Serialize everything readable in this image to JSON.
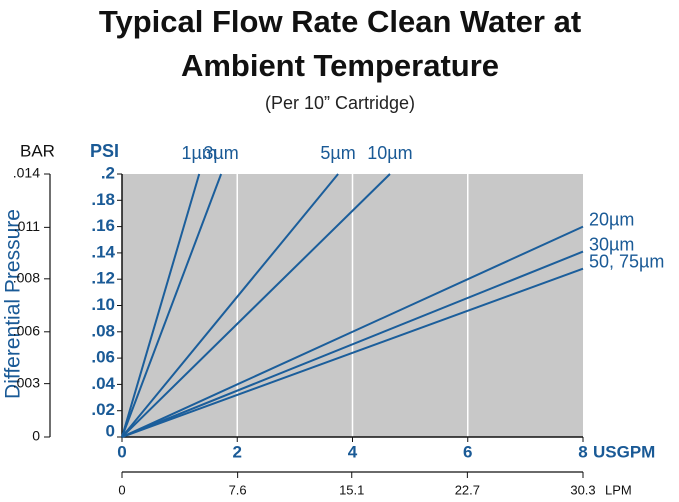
{
  "chart_data": {
    "type": "line",
    "title": [
      "Typical Flow Rate Clean Water at",
      "Ambient Temperature"
    ],
    "subtitle": "(Per 10” Cartridge)",
    "ylabel": "Differential Pressure",
    "ylabel_unit": "PSI",
    "y2label_unit": "BAR",
    "xlabel_unit": "USGPM",
    "x2label_unit": "LPM",
    "xlim": [
      0,
      8
    ],
    "xticks": [
      0,
      2,
      4,
      6,
      8
    ],
    "x2lim": [
      0,
      30.3
    ],
    "x2ticks": [
      0,
      7.6,
      15.1,
      22.7,
      30.3
    ],
    "ylim": [
      0,
      0.2
    ],
    "yticks": [
      0,
      {
        "value": 0.02,
        "label": ".02"
      },
      {
        "value": 0.04,
        "label": ".04"
      },
      {
        "value": 0.06,
        "label": ".06"
      },
      {
        "value": 0.08,
        "label": ".08"
      },
      {
        "value": 0.1,
        "label": ".10"
      },
      {
        "value": 0.12,
        "label": ".12"
      },
      {
        "value": 0.14,
        "label": ".14"
      },
      {
        "value": 0.16,
        "label": ".16"
      },
      {
        "value": 0.18,
        "label": ".18"
      },
      {
        "value": 0.2,
        "label": ".2"
      }
    ],
    "y2lim": [
      0,
      0.0138
    ],
    "y2ticks": [
      0,
      {
        "value": 0.0028,
        "label": ".003"
      },
      {
        "value": 0.00552,
        "label": ".006"
      },
      {
        "value": 0.0083,
        "label": ".008"
      },
      {
        "value": 0.011,
        "label": ".011"
      },
      {
        "value": 0.0138,
        "label": ".014"
      }
    ],
    "grid": "x",
    "background": "#c8c8c8",
    "series": [
      {
        "name": "1µm",
        "color": "#1b5e9b",
        "x": [
          0,
          1.34
        ],
        "values": [
          0,
          0.2
        ]
      },
      {
        "name": "3µm",
        "color": "#1b5e9b",
        "x": [
          0,
          1.72
        ],
        "values": [
          0,
          0.2
        ]
      },
      {
        "name": "5µm",
        "color": "#1b5e9b",
        "x": [
          0,
          3.75
        ],
        "values": [
          0,
          0.2
        ]
      },
      {
        "name": "10µm",
        "color": "#1b5e9b",
        "x": [
          0,
          4.65
        ],
        "values": [
          0,
          0.2
        ]
      },
      {
        "name": "20µm",
        "color": "#1b5e9b",
        "x": [
          0,
          8
        ],
        "values": [
          0,
          0.16
        ]
      },
      {
        "name": "30µm",
        "color": "#1b5e9b",
        "x": [
          0,
          8
        ],
        "values": [
          0,
          0.141
        ]
      },
      {
        "name": "50, 75µm",
        "color": "#1b5e9b",
        "x": [
          0,
          8
        ],
        "values": [
          0,
          0.128
        ]
      }
    ]
  }
}
